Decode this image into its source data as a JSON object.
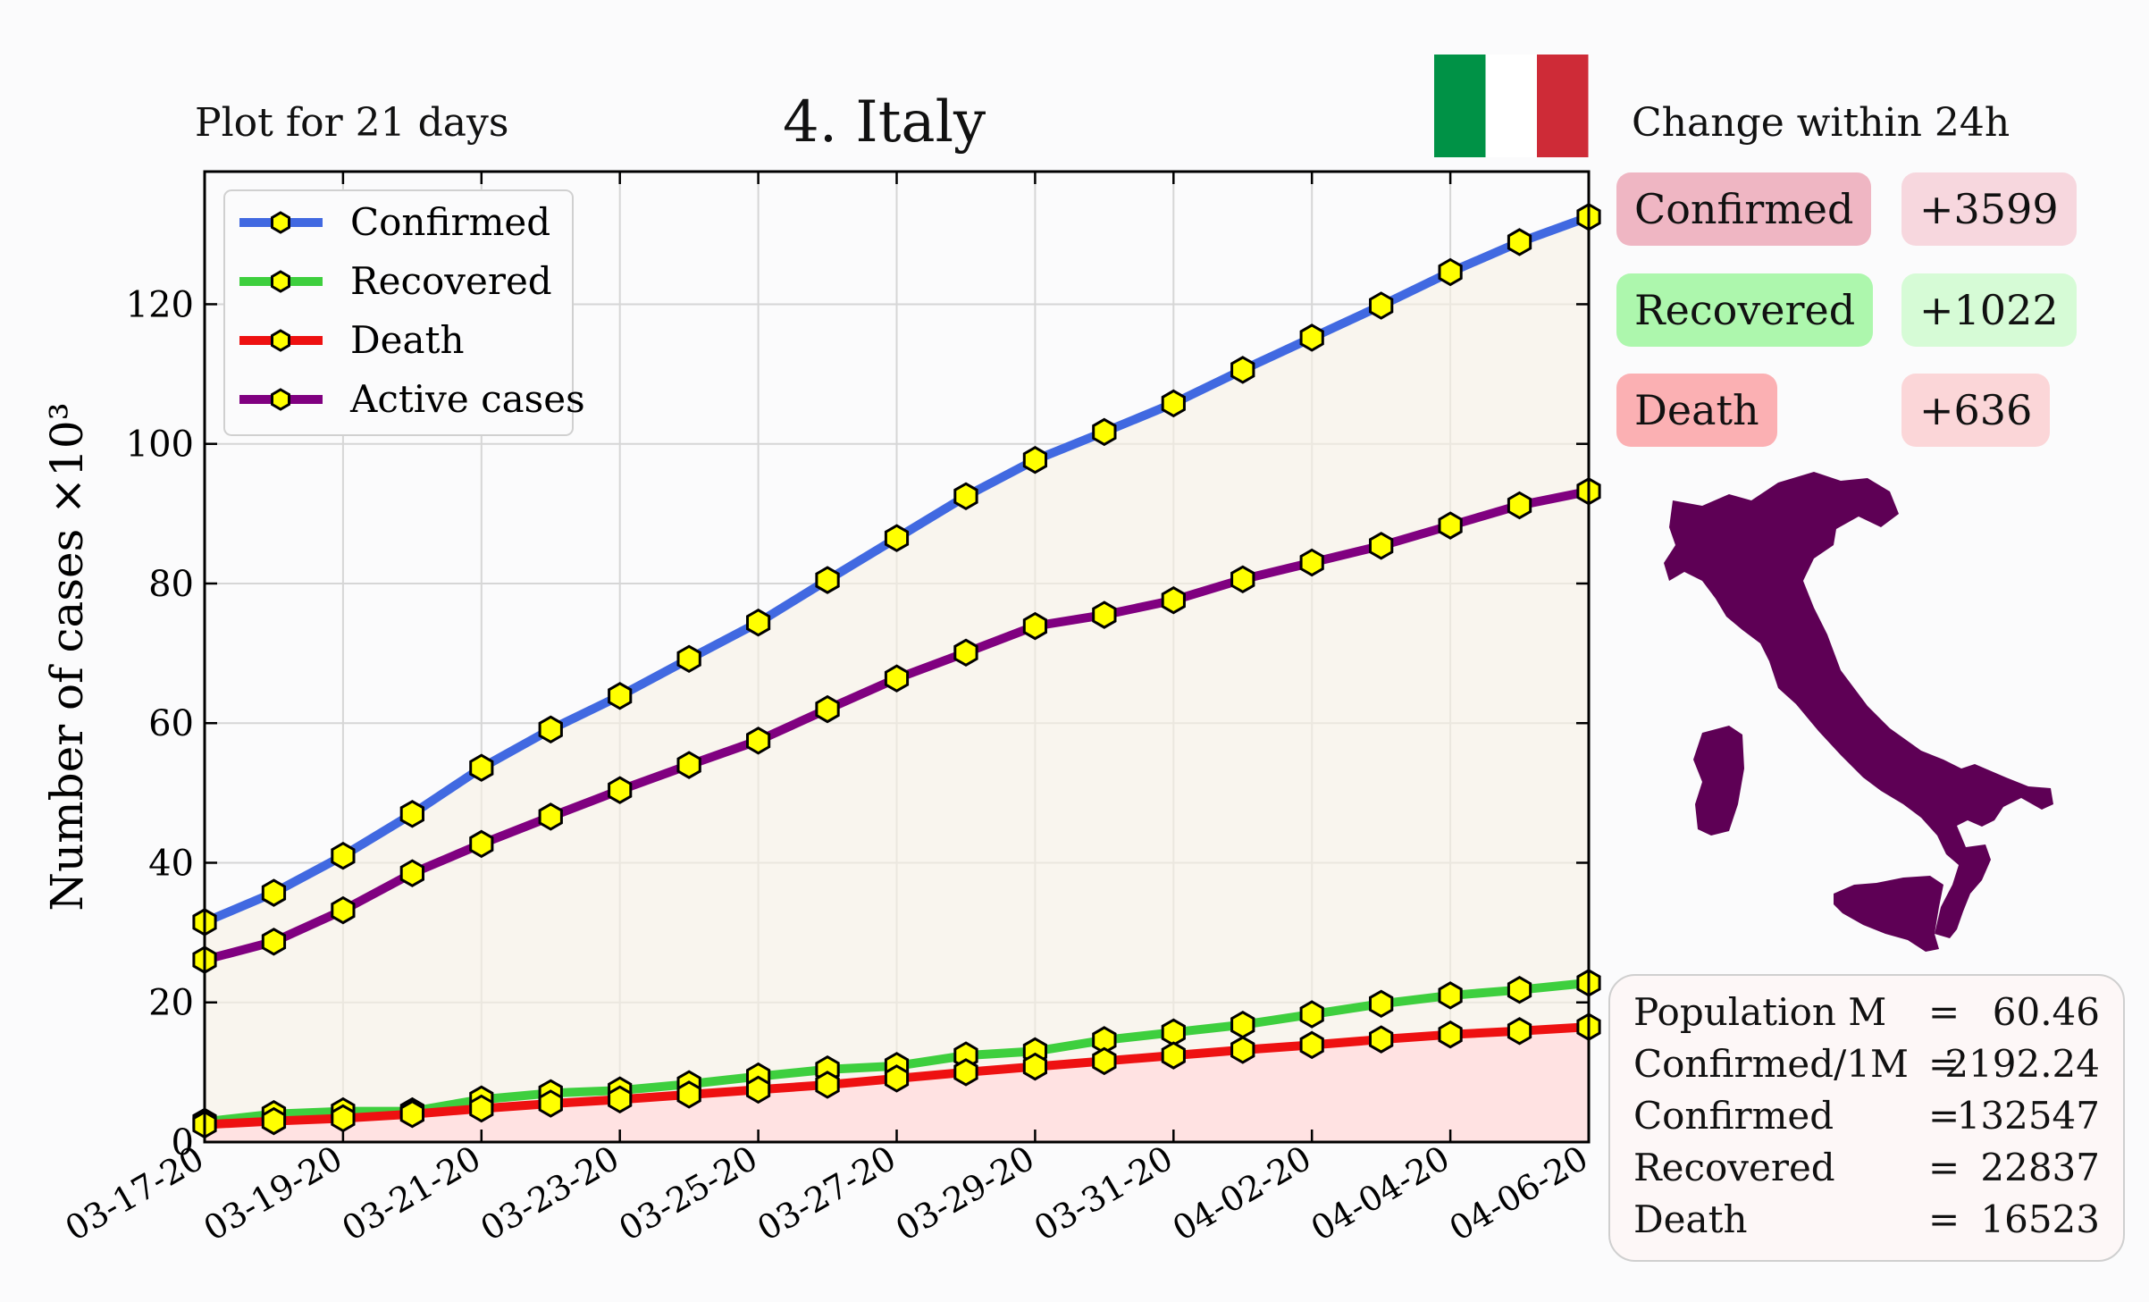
{
  "header": {
    "subtitle": "Plot for 21 days",
    "title": "4. Italy",
    "change_title": "Change within 24h"
  },
  "flag": {
    "colors": [
      "#009246",
      "#ffffff",
      "#ce2b37"
    ]
  },
  "map": {
    "color": "#5e0055",
    "icon": "italy-map-silhouette"
  },
  "change_24h": [
    {
      "label": "Confirmed",
      "value": "+3599",
      "label_bg": "#efb6c3",
      "value_bg": "#f7d7de"
    },
    {
      "label": "Recovered",
      "value": "+1022",
      "label_bg": "#adf7ad",
      "value_bg": "#d6fbd6"
    },
    {
      "label": "Death",
      "value": "+636",
      "label_bg": "#fbb0b3",
      "value_bg": "#fbd6d8"
    }
  ],
  "stats": [
    {
      "label": "Population M",
      "eq": "=",
      "value": "60.46"
    },
    {
      "label": "Confirmed/1M",
      "eq": "=",
      "value": "2192.24"
    },
    {
      "label": "Confirmed",
      "eq": "=",
      "value": "132547"
    },
    {
      "label": "Recovered",
      "eq": "=",
      "value": "22837"
    },
    {
      "label": "Death",
      "eq": "=",
      "value": "16523"
    }
  ],
  "chart_data": {
    "type": "line",
    "ylabel": "Number of cases ×10³",
    "ylim": [
      0,
      139
    ],
    "yticks": [
      0,
      20,
      40,
      60,
      80,
      100,
      120
    ],
    "grid": true,
    "legend_position": "top-left",
    "x": [
      "03-17-20",
      "03-18-20",
      "03-19-20",
      "03-20-20",
      "03-21-20",
      "03-22-20",
      "03-23-20",
      "03-24-20",
      "03-25-20",
      "03-26-20",
      "03-27-20",
      "03-28-20",
      "03-29-20",
      "03-30-20",
      "03-31-20",
      "04-01-20",
      "04-02-20",
      "04-03-20",
      "04-04-20",
      "04-05-20",
      "04-06-20"
    ],
    "xtick_labels": [
      "03-17-20",
      "03-19-20",
      "03-21-20",
      "03-23-20",
      "03-25-20",
      "03-27-20",
      "03-29-20",
      "03-31-20",
      "04-02-20",
      "04-04-20",
      "04-06-20"
    ],
    "series": [
      {
        "name": "Confirmed",
        "color": "#4169e1",
        "values": [
          31.5,
          35.7,
          41.0,
          47.0,
          53.6,
          59.1,
          63.9,
          69.2,
          74.4,
          80.5,
          86.5,
          92.5,
          97.7,
          101.7,
          105.8,
          110.6,
          115.2,
          119.8,
          124.6,
          128.9,
          132.5
        ]
      },
      {
        "name": "Recovered",
        "color": "#3ecf3e",
        "values": [
          2.9,
          4.0,
          4.4,
          4.4,
          6.1,
          7.0,
          7.4,
          8.3,
          9.4,
          10.4,
          10.9,
          12.4,
          13.0,
          14.6,
          15.7,
          16.8,
          18.3,
          19.8,
          21.0,
          21.8,
          22.8
        ]
      },
      {
        "name": "Death",
        "color": "#ee1111",
        "values": [
          2.5,
          3.0,
          3.4,
          4.0,
          4.8,
          5.5,
          6.1,
          6.8,
          7.5,
          8.2,
          9.1,
          10.0,
          10.8,
          11.6,
          12.4,
          13.2,
          13.9,
          14.7,
          15.4,
          15.9,
          16.5
        ]
      },
      {
        "name": "Active cases",
        "color": "#800080",
        "values": [
          26.1,
          28.7,
          33.2,
          38.5,
          42.7,
          46.6,
          50.4,
          54.0,
          57.5,
          62.0,
          66.4,
          70.1,
          73.9,
          75.5,
          77.6,
          80.6,
          83.0,
          85.4,
          88.3,
          91.2,
          93.2
        ]
      }
    ]
  }
}
